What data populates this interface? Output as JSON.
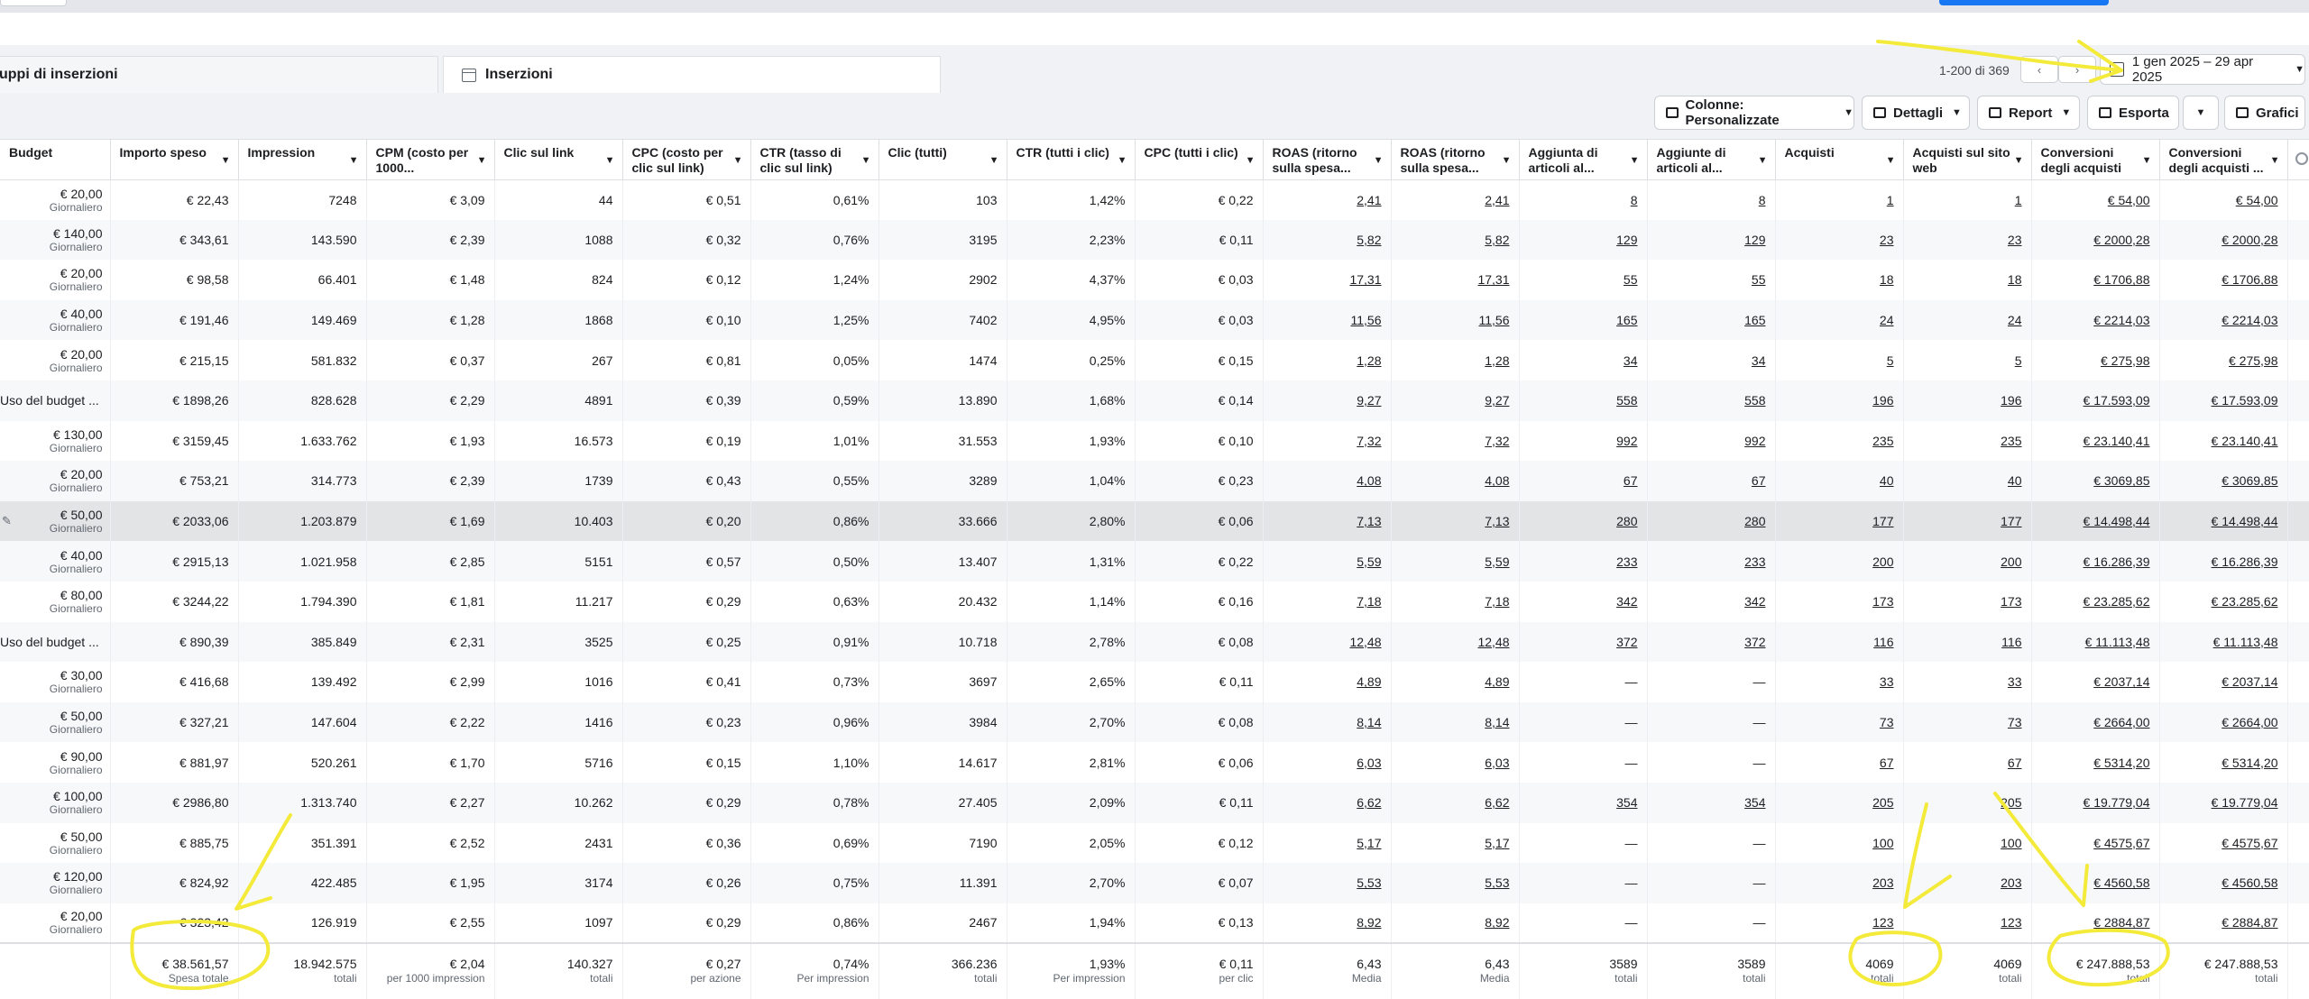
{
  "tabs": [
    {
      "label": "uppi di inserzioni"
    },
    {
      "label": "Inserzioni"
    }
  ],
  "pager": {
    "range": "1-200 di 369",
    "prev": "‹",
    "next": "›"
  },
  "date_range": "1 gen 2025 – 29 apr 2025",
  "toolbar": {
    "columns": "Colonne: Personalizzate",
    "details": "Dettagli",
    "report": "Report",
    "export": "Esporta",
    "charts": "Grafici"
  },
  "columns": [
    "Budget",
    "Importo speso",
    "Impression",
    "CPM (costo per 1000...",
    "Clic sul link",
    "CPC (costo per clic sul link)",
    "CTR (tasso di clic sul link)",
    "Clic (tutti)",
    "CTR (tutti i clic)",
    "CPC (tutti i clic)",
    "ROAS (ritorno sulla spesa...",
    "ROAS (ritorno sulla spesa...",
    "Aggiunta di articoli al...",
    "Aggiunte di articoli al...",
    "Acquisti",
    "Acquisti sul sito web",
    "Conversioni degli acquisti",
    "Conversioni degli acquisti ..."
  ],
  "rows": [
    {
      "budget": "€ 20,00",
      "sub": "Giornaliero",
      "cells": [
        "€ 22,43",
        "7248",
        "€ 3,09",
        "44",
        "€ 0,51",
        "0,61%",
        "103",
        "1,42%",
        "€ 0,22",
        "2,41",
        "2,41",
        "8",
        "8",
        "1",
        "1",
        "€ 54,00",
        "€ 54,00"
      ]
    },
    {
      "budget": "€ 140,00",
      "sub": "Giornaliero",
      "cells": [
        "€ 343,61",
        "143.590",
        "€ 2,39",
        "1088",
        "€ 0,32",
        "0,76%",
        "3195",
        "2,23%",
        "€ 0,11",
        "5,82",
        "5,82",
        "129",
        "129",
        "23",
        "23",
        "€ 2000,28",
        "€ 2000,28"
      ]
    },
    {
      "budget": "€ 20,00",
      "sub": "Giornaliero",
      "cells": [
        "€ 98,58",
        "66.401",
        "€ 1,48",
        "824",
        "€ 0,12",
        "1,24%",
        "2902",
        "4,37%",
        "€ 0,03",
        "17,31",
        "17,31",
        "55",
        "55",
        "18",
        "18",
        "€ 1706,88",
        "€ 1706,88"
      ]
    },
    {
      "budget": "€ 40,00",
      "sub": "Giornaliero",
      "cells": [
        "€ 191,46",
        "149.469",
        "€ 1,28",
        "1868",
        "€ 0,10",
        "1,25%",
        "7402",
        "4,95%",
        "€ 0,03",
        "11,56",
        "11,56",
        "165",
        "165",
        "24",
        "24",
        "€ 2214,03",
        "€ 2214,03"
      ]
    },
    {
      "budget": "€ 20,00",
      "sub": "Giornaliero",
      "cells": [
        "€ 215,15",
        "581.832",
        "€ 0,37",
        "267",
        "€ 0,81",
        "0,05%",
        "1474",
        "0,25%",
        "€ 0,15",
        "1,28",
        "1,28",
        "34",
        "34",
        "5",
        "5",
        "€ 275,98",
        "€ 275,98"
      ]
    },
    {
      "budget": "Uso del budget ...",
      "sub": "",
      "cells": [
        "€ 1898,26",
        "828.628",
        "€ 2,29",
        "4891",
        "€ 0,39",
        "0,59%",
        "13.890",
        "1,68%",
        "€ 0,14",
        "9,27",
        "9,27",
        "558",
        "558",
        "196",
        "196",
        "€ 17.593,09",
        "€ 17.593,09"
      ]
    },
    {
      "budget": "€ 130,00",
      "sub": "Giornaliero",
      "cells": [
        "€ 3159,45",
        "1.633.762",
        "€ 1,93",
        "16.573",
        "€ 0,19",
        "1,01%",
        "31.553",
        "1,93%",
        "€ 0,10",
        "7,32",
        "7,32",
        "992",
        "992",
        "235",
        "235",
        "€ 23.140,41",
        "€ 23.140,41"
      ]
    },
    {
      "budget": "€ 20,00",
      "sub": "Giornaliero",
      "cells": [
        "€ 753,21",
        "314.773",
        "€ 2,39",
        "1739",
        "€ 0,43",
        "0,55%",
        "3289",
        "1,04%",
        "€ 0,23",
        "4,08",
        "4,08",
        "67",
        "67",
        "40",
        "40",
        "€ 3069,85",
        "€ 3069,85"
      ]
    },
    {
      "budget": "€ 50,00",
      "sub": "Giornaliero",
      "cells": [
        "€ 2033,06",
        "1.203.879",
        "€ 1,69",
        "10.403",
        "€ 0,20",
        "0,86%",
        "33.666",
        "2,80%",
        "€ 0,06",
        "7,13",
        "7,13",
        "280",
        "280",
        "177",
        "177",
        "€ 14.498,44",
        "€ 14.498,44"
      ]
    },
    {
      "budget": "€ 40,00",
      "sub": "Giornaliero",
      "cells": [
        "€ 2915,13",
        "1.021.958",
        "€ 2,85",
        "5151",
        "€ 0,57",
        "0,50%",
        "13.407",
        "1,31%",
        "€ 0,22",
        "5,59",
        "5,59",
        "233",
        "233",
        "200",
        "200",
        "€ 16.286,39",
        "€ 16.286,39"
      ]
    },
    {
      "budget": "€ 80,00",
      "sub": "Giornaliero",
      "cells": [
        "€ 3244,22",
        "1.794.390",
        "€ 1,81",
        "11.217",
        "€ 0,29",
        "0,63%",
        "20.432",
        "1,14%",
        "€ 0,16",
        "7,18",
        "7,18",
        "342",
        "342",
        "173",
        "173",
        "€ 23.285,62",
        "€ 23.285,62"
      ]
    },
    {
      "budget": "Uso del budget ...",
      "sub": "",
      "cells": [
        "€ 890,39",
        "385.849",
        "€ 2,31",
        "3525",
        "€ 0,25",
        "0,91%",
        "10.718",
        "2,78%",
        "€ 0,08",
        "12,48",
        "12,48",
        "372",
        "372",
        "116",
        "116",
        "€ 11.113,48",
        "€ 11.113,48"
      ]
    },
    {
      "budget": "€ 30,00",
      "sub": "Giornaliero",
      "cells": [
        "€ 416,68",
        "139.492",
        "€ 2,99",
        "1016",
        "€ 0,41",
        "0,73%",
        "3697",
        "2,65%",
        "€ 0,11",
        "4,89",
        "4,89",
        "—",
        "—",
        "33",
        "33",
        "€ 2037,14",
        "€ 2037,14"
      ]
    },
    {
      "budget": "€ 50,00",
      "sub": "Giornaliero",
      "cells": [
        "€ 327,21",
        "147.604",
        "€ 2,22",
        "1416",
        "€ 0,23",
        "0,96%",
        "3984",
        "2,70%",
        "€ 0,08",
        "8,14",
        "8,14",
        "—",
        "—",
        "73",
        "73",
        "€ 2664,00",
        "€ 2664,00"
      ]
    },
    {
      "budget": "€ 90,00",
      "sub": "Giornaliero",
      "cells": [
        "€ 881,97",
        "520.261",
        "€ 1,70",
        "5716",
        "€ 0,15",
        "1,10%",
        "14.617",
        "2,81%",
        "€ 0,06",
        "6,03",
        "6,03",
        "—",
        "—",
        "67",
        "67",
        "€ 5314,20",
        "€ 5314,20"
      ]
    },
    {
      "budget": "€ 100,00",
      "sub": "Giornaliero",
      "cells": [
        "€ 2986,80",
        "1.313.740",
        "€ 2,27",
        "10.262",
        "€ 0,29",
        "0,78%",
        "27.405",
        "2,09%",
        "€ 0,11",
        "6,62",
        "6,62",
        "354",
        "354",
        "205",
        "205",
        "€ 19.779,04",
        "€ 19.779,04"
      ]
    },
    {
      "budget": "€ 50,00",
      "sub": "Giornaliero",
      "cells": [
        "€ 885,75",
        "351.391",
        "€ 2,52",
        "2431",
        "€ 0,36",
        "0,69%",
        "7190",
        "2,05%",
        "€ 0,12",
        "5,17",
        "5,17",
        "—",
        "—",
        "100",
        "100",
        "€ 4575,67",
        "€ 4575,67"
      ]
    },
    {
      "budget": "€ 120,00",
      "sub": "Giornaliero",
      "cells": [
        "€ 824,92",
        "422.485",
        "€ 1,95",
        "3174",
        "€ 0,26",
        "0,75%",
        "11.391",
        "2,70%",
        "€ 0,07",
        "5,53",
        "5,53",
        "—",
        "—",
        "203",
        "203",
        "€ 4560,58",
        "€ 4560,58"
      ]
    },
    {
      "budget": "€ 20,00",
      "sub": "Giornaliero",
      "cells": [
        "€ 323,42",
        "126.919",
        "€ 2,55",
        "1097",
        "€ 0,29",
        "0,86%",
        "2467",
        "1,94%",
        "€ 0,13",
        "8,92",
        "8,92",
        "—",
        "—",
        "123",
        "123",
        "€ 2884,87",
        "€ 2884,87"
      ]
    }
  ],
  "totals": [
    {
      "v": "",
      "l": ""
    },
    {
      "v": "€ 38.561,57",
      "l": "Spesa totale"
    },
    {
      "v": "18.942.575",
      "l": "totali"
    },
    {
      "v": "€ 2,04",
      "l": "per 1000 impression"
    },
    {
      "v": "140.327",
      "l": "totali"
    },
    {
      "v": "€ 0,27",
      "l": "per azione"
    },
    {
      "v": "0,74%",
      "l": "Per impression"
    },
    {
      "v": "366.236",
      "l": "totali"
    },
    {
      "v": "1,93%",
      "l": "Per impression"
    },
    {
      "v": "€ 0,11",
      "l": "per clic"
    },
    {
      "v": "6,43",
      "l": "Media"
    },
    {
      "v": "6,43",
      "l": "Media"
    },
    {
      "v": "3589",
      "l": "totali"
    },
    {
      "v": "3589",
      "l": "totali"
    },
    {
      "v": "4069",
      "l": "totali"
    },
    {
      "v": "4069",
      "l": "totali"
    },
    {
      "v": "€ 247.888,53",
      "l": "totali"
    },
    {
      "v": "€ 247.888,53",
      "l": "totali"
    }
  ],
  "colors": {
    "annotation": "#f3ea3a",
    "accent": "#1877f2",
    "highlight_row": "#e3e4e6"
  }
}
